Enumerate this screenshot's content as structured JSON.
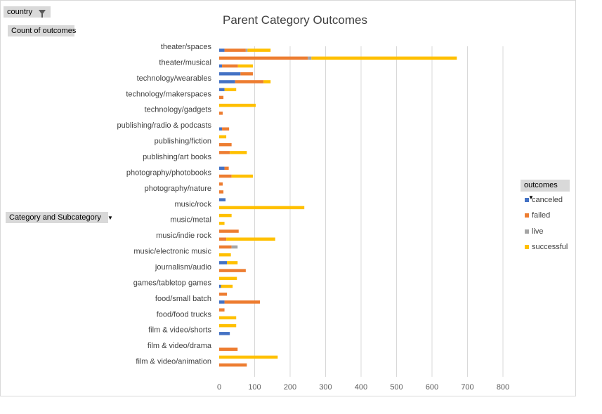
{
  "filters": {
    "country_label": "country",
    "values_label": "Count of outcomes",
    "rows_label": "Category and Subcategory"
  },
  "legend": {
    "title": "outcomes",
    "items": [
      {
        "name": "canceled",
        "color": "#4472c4"
      },
      {
        "name": "failed",
        "color": "#ed7d31"
      },
      {
        "name": "live",
        "color": "#a5a5a5"
      },
      {
        "name": "successful",
        "color": "#ffc000"
      }
    ]
  },
  "chart_data": {
    "type": "bar",
    "orientation": "horizontal",
    "stacked": true,
    "title": "Parent Category Outcomes",
    "xlim": [
      0,
      800
    ],
    "xticks": [
      0,
      100,
      200,
      300,
      400,
      500,
      600,
      700,
      800
    ],
    "grid": true,
    "legend_position": "right",
    "categories": [
      "theater/spaces",
      "",
      "theater/musical",
      "",
      "technology/wearables",
      "",
      "technology/makerspaces",
      "",
      "technology/gadgets",
      "",
      "publishing/radio & podcasts",
      "",
      "publishing/fiction",
      "",
      "publishing/art books",
      "",
      "photography/photobooks",
      "",
      "photography/nature",
      "",
      "music/rock",
      "",
      "music/metal",
      "",
      "music/indie rock",
      "",
      "music/electronic music",
      "",
      "journalism/audio",
      "",
      "games/tabletop games",
      "",
      "food/small batch",
      "",
      "food/food trucks",
      "",
      "film & video/shorts",
      "",
      "film & video/drama",
      "",
      "film & video/animation",
      ""
    ],
    "series": [
      {
        "name": "canceled",
        "color": "#4472c4",
        "values": [
          15,
          0,
          8,
          60,
          45,
          15,
          0,
          0,
          0,
          0,
          8,
          0,
          0,
          0,
          0,
          15,
          0,
          0,
          0,
          18,
          0,
          0,
          0,
          0,
          0,
          0,
          0,
          22,
          0,
          0,
          5,
          0,
          15,
          0,
          0,
          0,
          30,
          0,
          0,
          0,
          0,
          0
        ]
      },
      {
        "name": "failed",
        "color": "#ed7d31",
        "values": [
          60,
          250,
          45,
          35,
          80,
          0,
          12,
          0,
          10,
          0,
          20,
          0,
          35,
          30,
          0,
          12,
          35,
          10,
          12,
          0,
          0,
          0,
          0,
          55,
          20,
          35,
          0,
          0,
          75,
          0,
          0,
          22,
          100,
          15,
          0,
          0,
          0,
          0,
          52,
          0,
          78,
          0
        ]
      },
      {
        "name": "live",
        "color": "#a5a5a5",
        "values": [
          5,
          10,
          0,
          0,
          0,
          0,
          0,
          0,
          0,
          0,
          0,
          0,
          0,
          0,
          0,
          0,
          0,
          0,
          0,
          0,
          0,
          0,
          0,
          0,
          0,
          17,
          0,
          0,
          0,
          0,
          0,
          0,
          0,
          0,
          0,
          0,
          0,
          0,
          0,
          0,
          0,
          0
        ]
      },
      {
        "name": "successful",
        "color": "#ffc000",
        "values": [
          65,
          410,
          42,
          0,
          20,
          33,
          0,
          103,
          0,
          0,
          0,
          20,
          0,
          48,
          0,
          0,
          60,
          0,
          0,
          0,
          240,
          35,
          15,
          0,
          138,
          0,
          33,
          30,
          0,
          50,
          33,
          0,
          0,
          0,
          48,
          48,
          0,
          0,
          0,
          165,
          0,
          0
        ]
      }
    ]
  }
}
